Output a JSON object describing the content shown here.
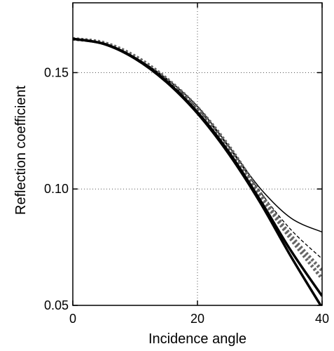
{
  "chart_data": {
    "type": "line",
    "title": "",
    "xlabel": "Incidence angle",
    "ylabel": "Reflection coefficient",
    "xlim": [
      0,
      40
    ],
    "ylim": [
      0.05,
      0.18
    ],
    "grid": true,
    "grid_style": "dotted",
    "x_ticks": [
      0,
      20,
      40
    ],
    "x_tick_labels": [
      "0",
      "20",
      "40"
    ],
    "y_ticks": [
      0.05,
      0.1,
      0.15
    ],
    "y_tick_labels": [
      "0.05",
      "0.10",
      "0.15"
    ],
    "colors": {
      "black": "#000000",
      "gray": "#666666"
    },
    "series": [
      {
        "style": "thin-solid-black",
        "x": [
          0,
          5,
          10,
          15,
          20,
          25,
          30,
          35,
          40
        ],
        "y": [
          0.1645,
          0.1625,
          0.1565,
          0.1475,
          0.1355,
          0.1185,
          0.1005,
          0.0875,
          0.0815
        ]
      },
      {
        "style": "thin-dashed-black",
        "x": [
          0,
          5,
          10,
          15,
          20,
          25,
          30,
          35,
          40
        ],
        "y": [
          0.1645,
          0.1625,
          0.1565,
          0.147,
          0.1345,
          0.118,
          0.099,
          0.0825,
          0.07
        ]
      },
      {
        "style": "thick-dotted-gray",
        "x": [
          0,
          5,
          10,
          15,
          20,
          25,
          30,
          35,
          40
        ],
        "y": [
          0.1645,
          0.1628,
          0.157,
          0.1475,
          0.135,
          0.1185,
          0.0985,
          0.08,
          0.065
        ]
      },
      {
        "style": "thick-dotted-gray-2",
        "x": [
          0,
          5,
          10,
          15,
          20,
          25,
          30,
          35,
          40
        ],
        "y": [
          0.1645,
          0.1627,
          0.1568,
          0.1472,
          0.1345,
          0.1178,
          0.0975,
          0.0785,
          0.0615
        ]
      },
      {
        "style": "thick-solid-black",
        "x": [
          0,
          5,
          10,
          15,
          20,
          25,
          30,
          35,
          40
        ],
        "y": [
          0.1645,
          0.1624,
          0.1562,
          0.1463,
          0.133,
          0.116,
          0.0955,
          0.0735,
          0.054
        ]
      },
      {
        "style": "thick-solid-black-2",
        "x": [
          0,
          5,
          10,
          15,
          20,
          25,
          30,
          35,
          40
        ],
        "y": [
          0.1645,
          0.1623,
          0.156,
          0.146,
          0.1325,
          0.1152,
          0.0945,
          0.071,
          0.049
        ]
      }
    ]
  }
}
